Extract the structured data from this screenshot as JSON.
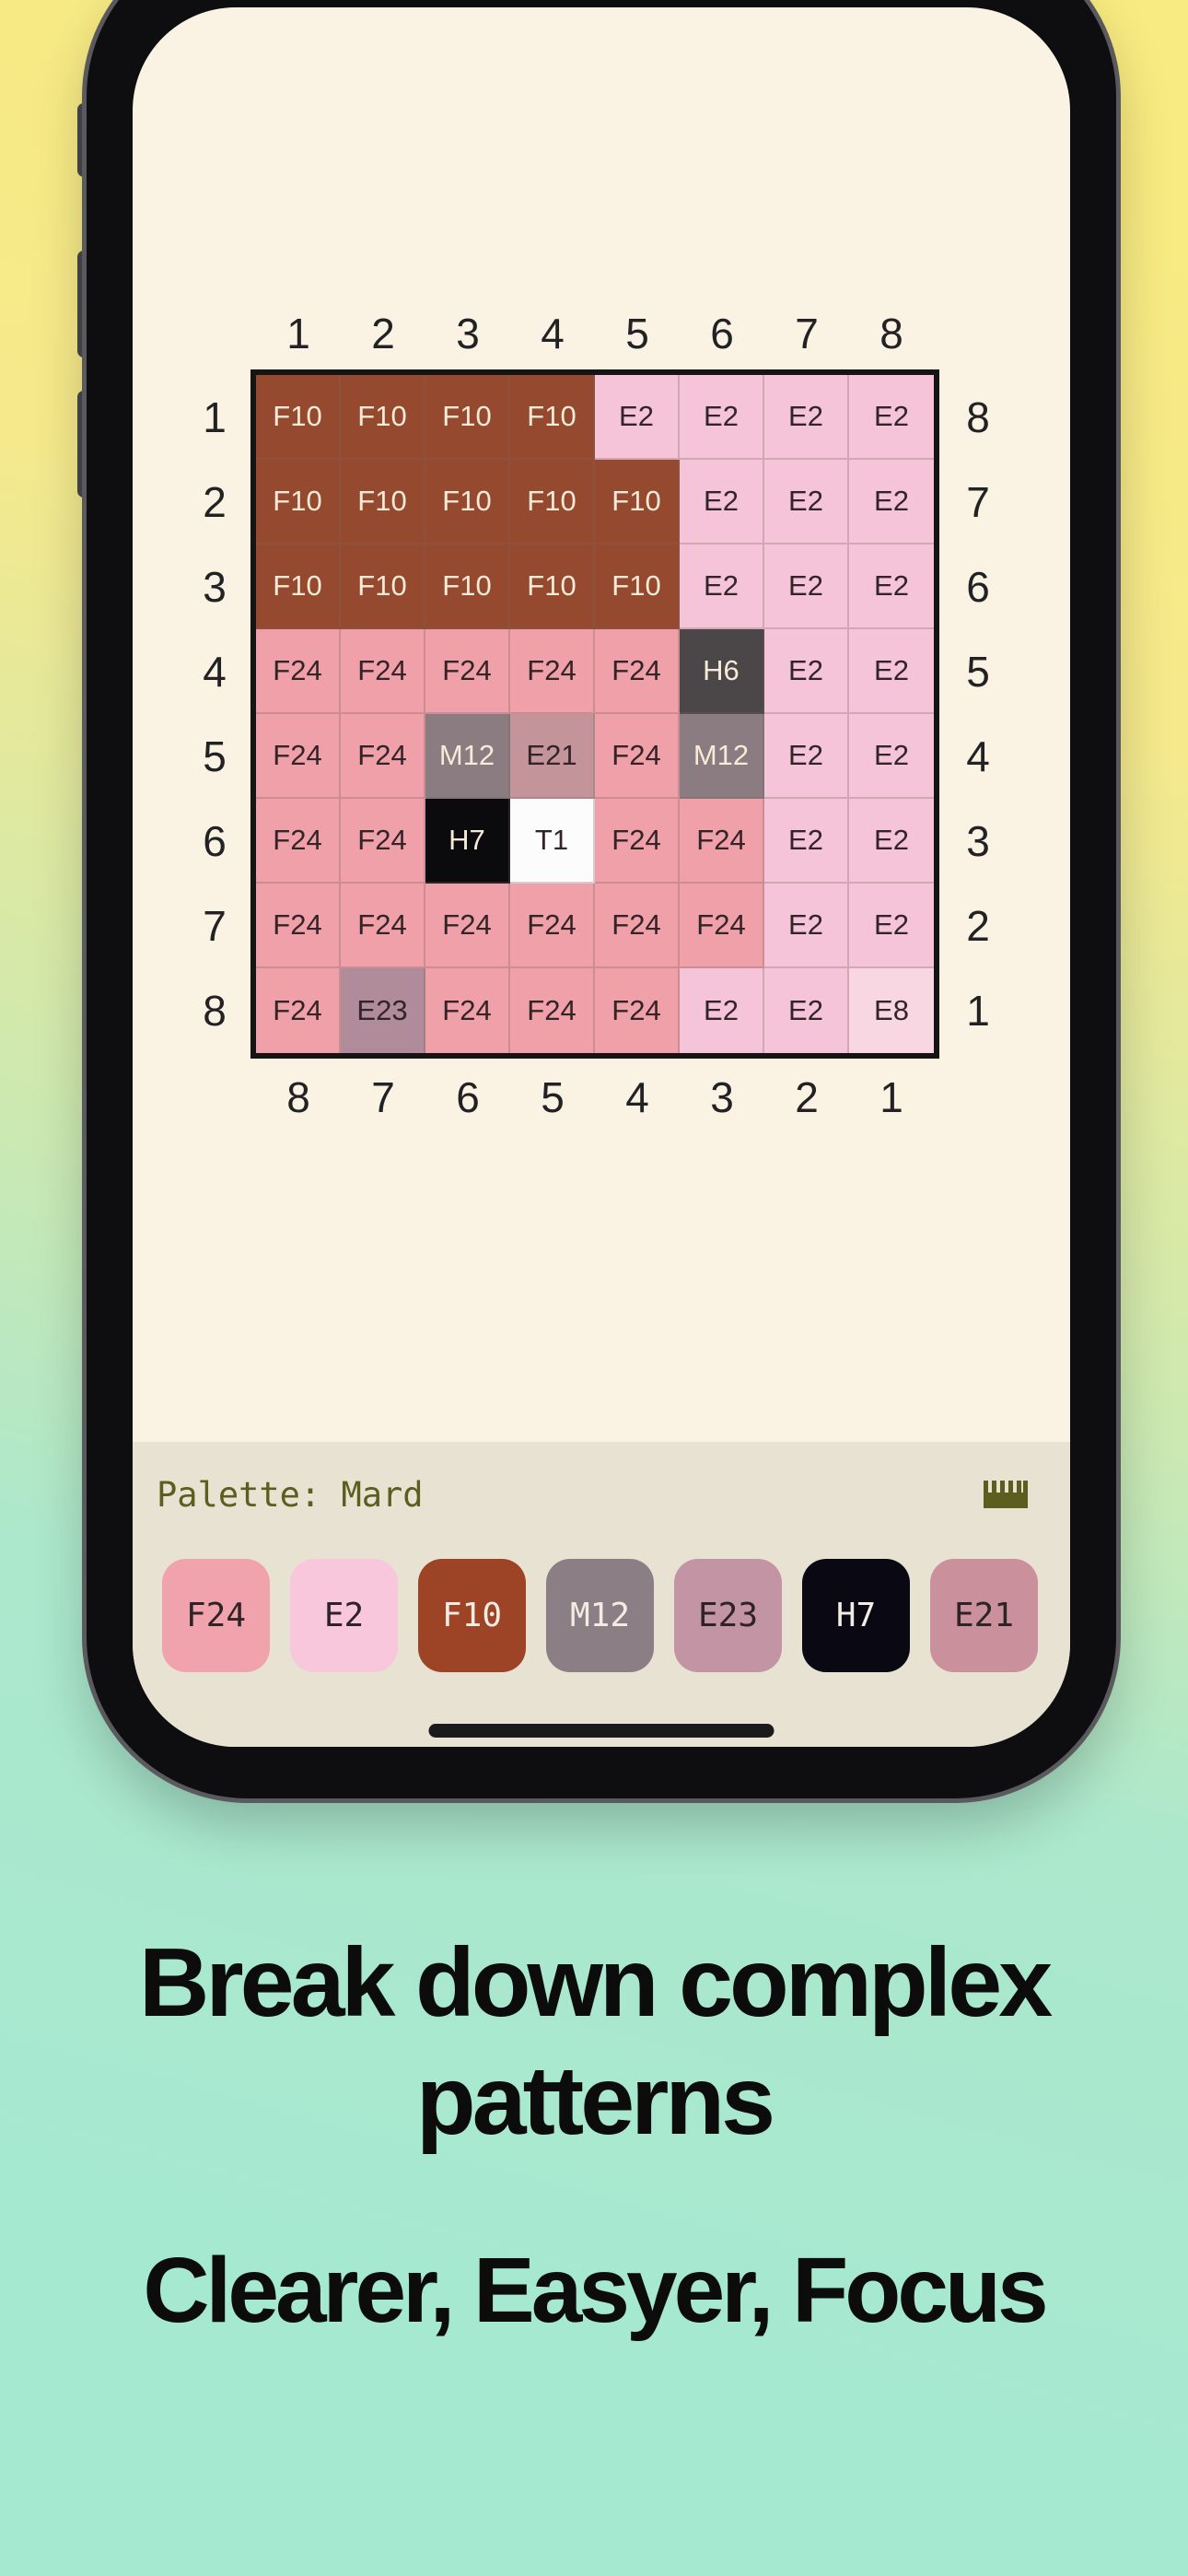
{
  "grid": {
    "top_labels": [
      "1",
      "2",
      "3",
      "4",
      "5",
      "6",
      "7",
      "8"
    ],
    "bottom_labels": [
      "8",
      "7",
      "6",
      "5",
      "4",
      "3",
      "2",
      "1"
    ],
    "left_labels": [
      "1",
      "2",
      "3",
      "4",
      "5",
      "6",
      "7",
      "8"
    ],
    "right_labels": [
      "8",
      "7",
      "6",
      "5",
      "4",
      "3",
      "2",
      "1"
    ],
    "cells": [
      [
        "F10",
        "F10",
        "F10",
        "F10",
        "E2",
        "E2",
        "E2",
        "E2"
      ],
      [
        "F10",
        "F10",
        "F10",
        "F10",
        "F10",
        "E2",
        "E2",
        "E2"
      ],
      [
        "F10",
        "F10",
        "F10",
        "F10",
        "F10",
        "E2",
        "E2",
        "E2"
      ],
      [
        "F24",
        "F24",
        "F24",
        "F24",
        "F24",
        "H6",
        "E2",
        "E2"
      ],
      [
        "F24",
        "F24",
        "M12",
        "E21",
        "F24",
        "M12",
        "E2",
        "E2"
      ],
      [
        "F24",
        "F24",
        "H7",
        "T1",
        "F24",
        "F24",
        "E2",
        "E2"
      ],
      [
        "F24",
        "F24",
        "F24",
        "F24",
        "F24",
        "F24",
        "E2",
        "E2"
      ],
      [
        "F24",
        "E23",
        "F24",
        "F24",
        "F24",
        "E2",
        "E2",
        "E8"
      ]
    ],
    "legend": {
      "F10": {
        "bg": "#95492e",
        "fg": "light"
      },
      "E2": {
        "bg": "#f6c4d8",
        "fg": "dark"
      },
      "F24": {
        "bg": "#efa0a8",
        "fg": "dark"
      },
      "H6": {
        "bg": "#4b4647",
        "fg": "light"
      },
      "M12": {
        "bg": "#8a7c81",
        "fg": "light"
      },
      "E21": {
        "bg": "#c4949b",
        "fg": "dark"
      },
      "H7": {
        "bg": "#0b0a0d",
        "fg": "light"
      },
      "T1": {
        "bg": "#fdfcfd",
        "fg": "dark"
      },
      "E23": {
        "bg": "#b08b99",
        "fg": "dark"
      },
      "E8": {
        "bg": "#f8d7e2",
        "fg": "dark"
      }
    }
  },
  "palette_bar": {
    "label": "Palette: Mard",
    "ruler_icon": "ruler-icon",
    "swatches": [
      {
        "code": "F24",
        "bg": "#f1a3ad",
        "fg": "dark"
      },
      {
        "code": "E2",
        "bg": "#f9c7dc",
        "fg": "dark"
      },
      {
        "code": "F10",
        "bg": "#9e4426",
        "fg": "light"
      },
      {
        "code": "M12",
        "bg": "#8b7e84",
        "fg": "light"
      },
      {
        "code": "E23",
        "bg": "#c294a4",
        "fg": "dark"
      },
      {
        "code": "H7",
        "bg": "#0a0913",
        "fg": "light"
      },
      {
        "code": "E21",
        "bg": "#ca909b",
        "fg": "dark"
      }
    ]
  },
  "marketing": {
    "headline_line1": "Break down complex",
    "headline_line2": "patterns",
    "subheadline": "Clearer, Easyer, Focus"
  },
  "colors": {
    "screen_bg": "#faf3e4",
    "palette_bar_bg": "#e7e2d1",
    "olive": "#5a5e1f",
    "cell_text_dark": "#332428",
    "cell_text_light": "#f6ead8",
    "bg_gradient_top": "#f8eb81",
    "bg_gradient_bottom": "#a6e9d1"
  }
}
